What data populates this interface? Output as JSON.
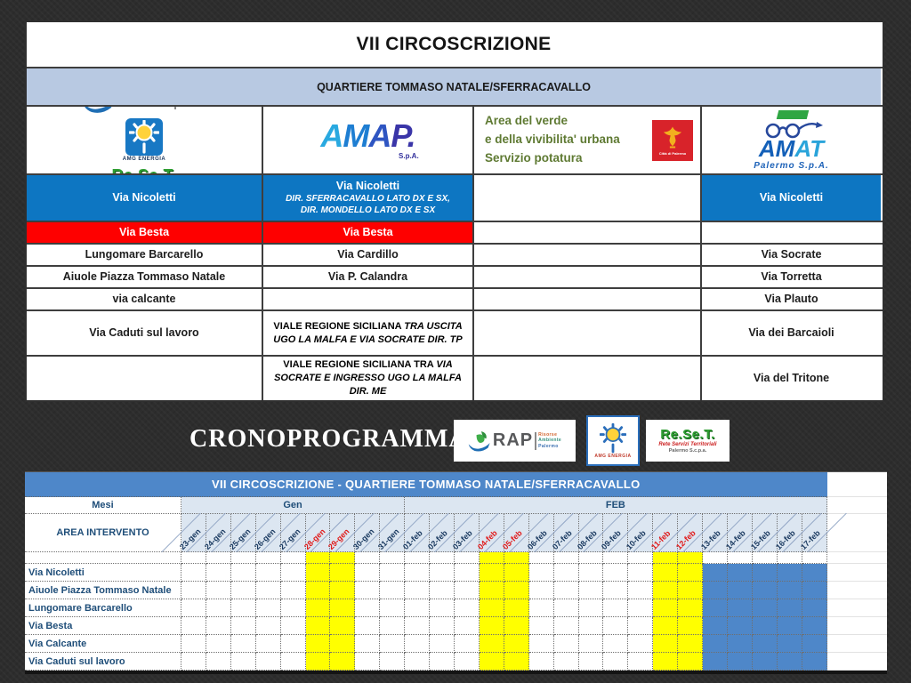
{
  "colors": {
    "header_blue": "#0d76c2",
    "header_red": "#fe0000",
    "subtitle_band": "#b8c9e2",
    "gantt_title_bar": "#4e87c9",
    "gantt_month_band": "#dce6f1",
    "gantt_highlight_yellow": "#ffff00",
    "gantt_highlight_blue": "#4e87c9",
    "date_weekday": "#17375e",
    "date_weekend": "#e01818"
  },
  "top_table": {
    "title": "VII CIRCOSCRIZIONE",
    "subtitle": "QUARTIERE TOMMASO NATALE/SFERRACAVALLO",
    "rows": [
      {
        "c1": "Via Nicoletti",
        "c2_main": "Via Nicoletti",
        "c2_sub1": "DIR. SFERRACAVALLO LATO DX E SX,",
        "c2_sub2": "DIR. MONDELLO LATO DX E SX",
        "c3": "",
        "c4": "Via Nicoletti"
      },
      {
        "c1": "Via Besta",
        "c2": "Via Besta",
        "c3": "",
        "c4": ""
      },
      {
        "c1": "Lungomare Barcarello",
        "c2": "Via Cardillo",
        "c3": "",
        "c4": "Via Socrate"
      },
      {
        "c1": "Aiuole Piazza Tommaso Natale",
        "c2": "Via P. Calandra",
        "c3": "",
        "c4": "Via Torretta"
      },
      {
        "c1": "via calcante",
        "c2": "",
        "c3": "",
        "c4": "Via Plauto"
      },
      {
        "c1": "Via Caduti sul lavoro",
        "c2_plain": "VIALE REGIONE SICILIANA ",
        "c2_italic": "TRA USCITA UGO LA MALFA E VIA SOCRATE DIR. TP",
        "c3": "",
        "c4": "Via dei Barcaioli"
      },
      {
        "c1": "",
        "c2_plain": "VIALE REGIONE SICILIANA TRA ",
        "c2_italic": "VIA SOCRATE E INGRESSO UGO LA MALFA DIR. ME",
        "c3": "",
        "c4": "Via del Tritone"
      }
    ]
  },
  "logos": {
    "rap": {
      "name": "RAP",
      "sub1": "Risorse",
      "sub2": "Ambiente",
      "sub3": "Palermo"
    },
    "amg": {
      "name": "AMG ENERGIA"
    },
    "reset": {
      "name": "Re.Se.T.",
      "sub1": "Rete Servizi Territoriali",
      "sub2": "Palermo S.c.p.a."
    },
    "amap": {
      "a1": "A",
      "m": "M",
      "a2": "A",
      "p": "P.",
      "sub": "S.p.A."
    },
    "verde": {
      "line1": "Area del verde",
      "line2": "e della vivibilita' urbana",
      "line3": "Servizio potatura"
    },
    "palermo": {
      "caption": "Città di Palermo"
    },
    "amat": {
      "a1": "A",
      "m": "M",
      "a2": "A",
      "t": "T",
      "sub": "Palermo S.p.A."
    }
  },
  "crono": {
    "title": "CRONOPROGRAMMA"
  },
  "gantt": {
    "title": "VII CIRCOSCRIZIONE - QUARTIERE TOMMASO NATALE/SFERRACAVALLO",
    "mesi_label": "Mesi",
    "area_label": "AREA INTERVENTO",
    "months": [
      {
        "label": "Gen",
        "span": 9
      },
      {
        "label": "FEB",
        "span": 17
      }
    ],
    "dates": [
      {
        "label": "23-gen",
        "weekend": false,
        "blue": false
      },
      {
        "label": "24-gen",
        "weekend": false,
        "blue": false
      },
      {
        "label": "25-gen",
        "weekend": false,
        "blue": false
      },
      {
        "label": "26-gen",
        "weekend": false,
        "blue": false
      },
      {
        "label": "27-gen",
        "weekend": false,
        "blue": false
      },
      {
        "label": "28-gen",
        "weekend": true,
        "blue": false
      },
      {
        "label": "29-gen",
        "weekend": true,
        "blue": false
      },
      {
        "label": "30-gen",
        "weekend": false,
        "blue": false
      },
      {
        "label": "31-gen",
        "weekend": false,
        "blue": false
      },
      {
        "label": "01-feb",
        "weekend": false,
        "blue": false
      },
      {
        "label": "02-feb",
        "weekend": false,
        "blue": false
      },
      {
        "label": "03-feb",
        "weekend": false,
        "blue": false
      },
      {
        "label": "04-feb",
        "weekend": true,
        "blue": false
      },
      {
        "label": "05-feb",
        "weekend": true,
        "blue": false
      },
      {
        "label": "06-feb",
        "weekend": false,
        "blue": false
      },
      {
        "label": "07-feb",
        "weekend": false,
        "blue": false
      },
      {
        "label": "08-feb",
        "weekend": false,
        "blue": false
      },
      {
        "label": "09-feb",
        "weekend": false,
        "blue": false
      },
      {
        "label": "10-feb",
        "weekend": false,
        "blue": false
      },
      {
        "label": "11-feb",
        "weekend": true,
        "blue": false
      },
      {
        "label": "12-feb",
        "weekend": true,
        "blue": false
      },
      {
        "label": "13-feb",
        "weekend": false,
        "blue": true
      },
      {
        "label": "14-feb",
        "weekend": false,
        "blue": true
      },
      {
        "label": "15-feb",
        "weekend": false,
        "blue": true
      },
      {
        "label": "16-feb",
        "weekend": false,
        "blue": true
      },
      {
        "label": "17-feb",
        "weekend": false,
        "blue": true
      }
    ],
    "rows": [
      "Via Nicoletti",
      "Aiuole Piazza Tommaso Natale",
      "Lungomare Barcarello",
      "Via Besta",
      "Via Calcante",
      "Via Caduti sul lavoro"
    ]
  }
}
